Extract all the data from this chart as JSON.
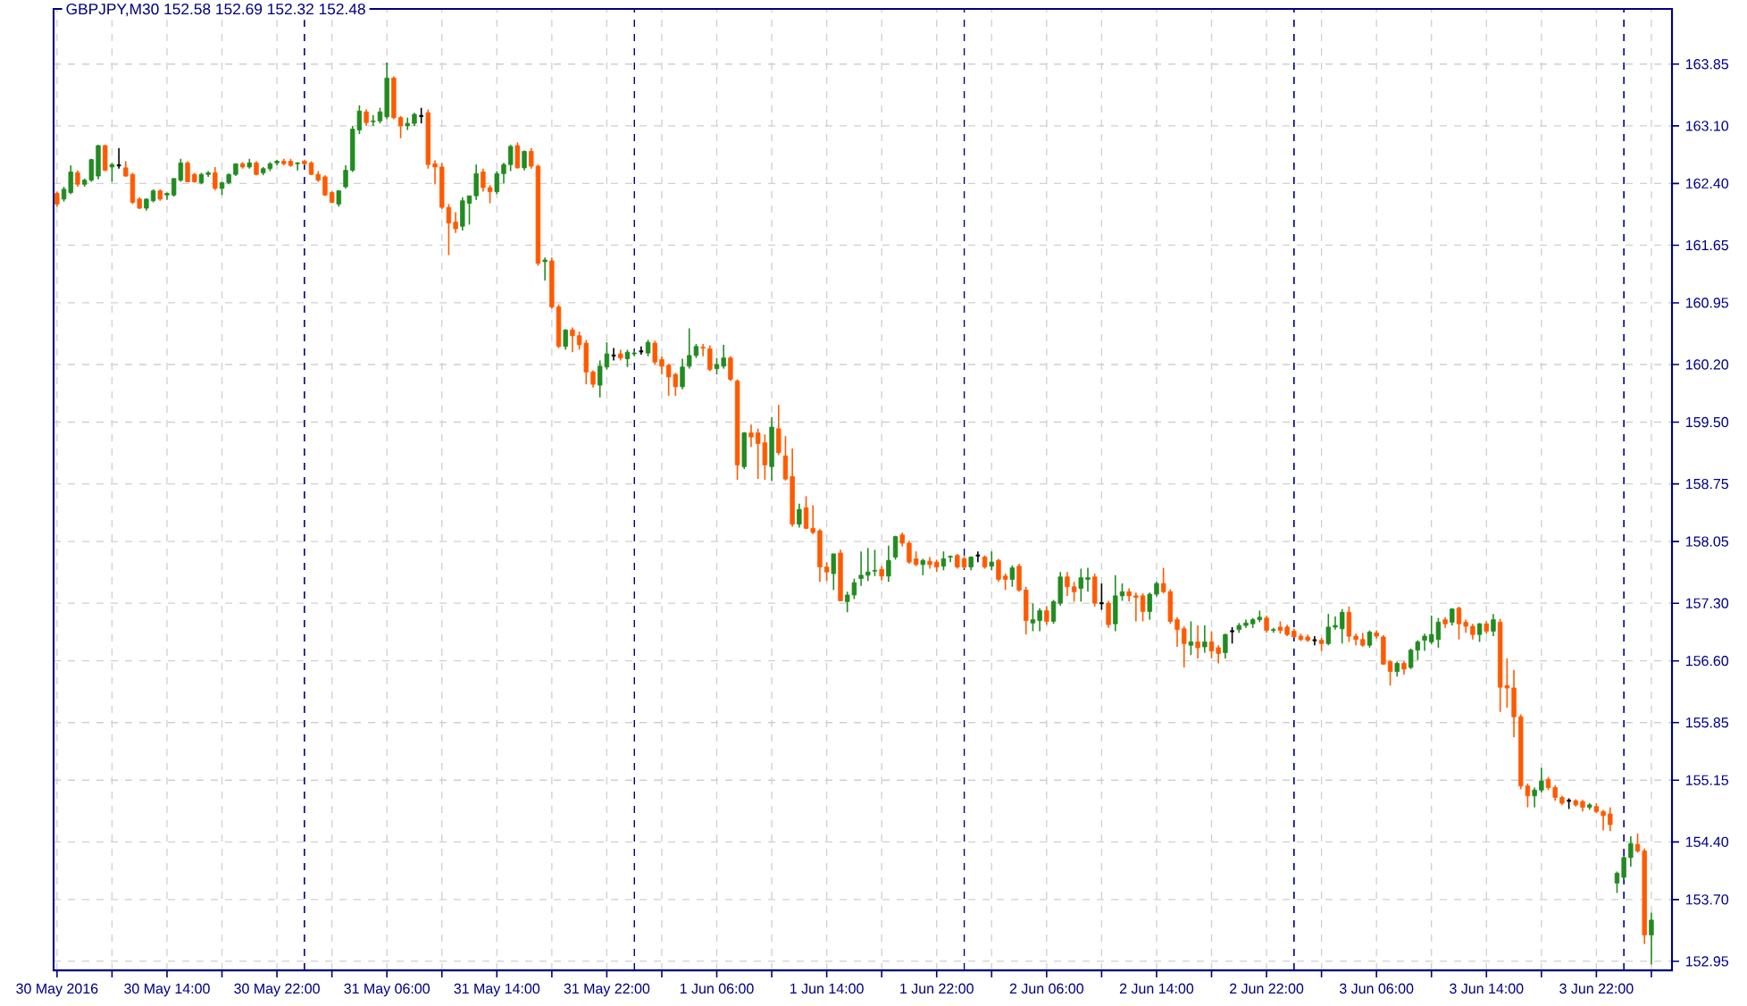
{
  "chart_data": {
    "type": "candlestick",
    "title": "GBPJPY,M30  152.58 152.69 152.32 152.48",
    "x": [
      "2016-05-30T06:00",
      "2016-05-30T06:30",
      "2016-05-30T07:00",
      "2016-05-30T07:30",
      "2016-05-30T08:00",
      "2016-05-30T08:30",
      "2016-05-30T09:00",
      "2016-05-30T09:30",
      "2016-05-30T10:00",
      "2016-05-30T10:30",
      "2016-05-30T11:00",
      "2016-05-30T11:30",
      "2016-05-30T12:00",
      "2016-05-30T12:30",
      "2016-05-30T13:00",
      "2016-05-30T13:30",
      "2016-05-30T14:00",
      "2016-05-30T14:30",
      "2016-05-30T15:00",
      "2016-05-30T15:30",
      "2016-05-30T16:00",
      "2016-05-30T16:30",
      "2016-05-30T17:00",
      "2016-05-30T17:30",
      "2016-05-30T18:00",
      "2016-05-30T18:30",
      "2016-05-30T19:00",
      "2016-05-30T19:30",
      "2016-05-30T20:00",
      "2016-05-30T20:30",
      "2016-05-30T21:00",
      "2016-05-30T21:30",
      "2016-05-30T22:00",
      "2016-05-30T22:30",
      "2016-05-30T23:00",
      "2016-05-30T23:30",
      "2016-05-31T00:00",
      "2016-05-31T00:30",
      "2016-05-31T01:00",
      "2016-05-31T01:30",
      "2016-05-31T02:00",
      "2016-05-31T02:30",
      "2016-05-31T03:00",
      "2016-05-31T03:30",
      "2016-05-31T04:00",
      "2016-05-31T04:30",
      "2016-05-31T05:00",
      "2016-05-31T05:30",
      "2016-05-31T06:00",
      "2016-05-31T06:30",
      "2016-05-31T07:00",
      "2016-05-31T07:30",
      "2016-05-31T08:00",
      "2016-05-31T08:30",
      "2016-05-31T09:00",
      "2016-05-31T09:30",
      "2016-05-31T10:00",
      "2016-05-31T10:30",
      "2016-05-31T11:00",
      "2016-05-31T11:30",
      "2016-05-31T12:00",
      "2016-05-31T12:30",
      "2016-05-31T13:00",
      "2016-05-31T13:30",
      "2016-05-31T14:00",
      "2016-05-31T14:30",
      "2016-05-31T15:00",
      "2016-05-31T15:30",
      "2016-05-31T16:00",
      "2016-05-31T16:30",
      "2016-05-31T17:00",
      "2016-05-31T17:30",
      "2016-05-31T18:00",
      "2016-05-31T18:30",
      "2016-05-31T19:00",
      "2016-05-31T19:30",
      "2016-05-31T20:00",
      "2016-05-31T20:30",
      "2016-05-31T21:00",
      "2016-05-31T21:30",
      "2016-05-31T22:00",
      "2016-05-31T22:30",
      "2016-05-31T23:00",
      "2016-05-31T23:30",
      "2016-06-01T00:00",
      "2016-06-01T00:30",
      "2016-06-01T01:00",
      "2016-06-01T01:30",
      "2016-06-01T02:00",
      "2016-06-01T02:30",
      "2016-06-01T03:00",
      "2016-06-01T03:30",
      "2016-06-01T04:00",
      "2016-06-01T04:30",
      "2016-06-01T05:00",
      "2016-06-01T05:30",
      "2016-06-01T06:00",
      "2016-06-01T06:30",
      "2016-06-01T07:00",
      "2016-06-01T07:30",
      "2016-06-01T08:00",
      "2016-06-01T08:30",
      "2016-06-01T09:00",
      "2016-06-01T09:30",
      "2016-06-01T10:00",
      "2016-06-01T10:30",
      "2016-06-01T11:00",
      "2016-06-01T11:30",
      "2016-06-01T12:00",
      "2016-06-01T12:30",
      "2016-06-01T13:00",
      "2016-06-01T13:30",
      "2016-06-01T14:00",
      "2016-06-01T14:30",
      "2016-06-01T15:00",
      "2016-06-01T15:30",
      "2016-06-01T16:00",
      "2016-06-01T16:30",
      "2016-06-01T17:00",
      "2016-06-01T17:30",
      "2016-06-01T18:00",
      "2016-06-01T18:30",
      "2016-06-01T19:00",
      "2016-06-01T19:30",
      "2016-06-01T20:00",
      "2016-06-01T20:30",
      "2016-06-01T21:00",
      "2016-06-01T21:30",
      "2016-06-01T22:00",
      "2016-06-01T22:30",
      "2016-06-01T23:00",
      "2016-06-01T23:30",
      "2016-06-02T00:00",
      "2016-06-02T00:30",
      "2016-06-02T01:00",
      "2016-06-02T01:30",
      "2016-06-02T02:00",
      "2016-06-02T02:30",
      "2016-06-02T03:00",
      "2016-06-02T03:30",
      "2016-06-02T04:00",
      "2016-06-02T04:30",
      "2016-06-02T05:00",
      "2016-06-02T05:30",
      "2016-06-02T06:00",
      "2016-06-02T06:30",
      "2016-06-02T07:00",
      "2016-06-02T07:30",
      "2016-06-02T08:00",
      "2016-06-02T08:30",
      "2016-06-02T09:00",
      "2016-06-02T09:30",
      "2016-06-02T10:00",
      "2016-06-02T10:30",
      "2016-06-02T11:00",
      "2016-06-02T11:30",
      "2016-06-02T12:00",
      "2016-06-02T12:30",
      "2016-06-02T13:00",
      "2016-06-02T13:30",
      "2016-06-02T14:00",
      "2016-06-02T14:30",
      "2016-06-02T15:00",
      "2016-06-02T15:30",
      "2016-06-02T16:00",
      "2016-06-02T16:30",
      "2016-06-02T17:00",
      "2016-06-02T17:30",
      "2016-06-02T18:00",
      "2016-06-02T18:30",
      "2016-06-02T19:00",
      "2016-06-02T19:30",
      "2016-06-02T20:00",
      "2016-06-02T20:30",
      "2016-06-02T21:00",
      "2016-06-02T21:30",
      "2016-06-02T22:00",
      "2016-06-02T22:30",
      "2016-06-02T23:00",
      "2016-06-02T23:30",
      "2016-06-03T00:00",
      "2016-06-03T00:30",
      "2016-06-03T01:00",
      "2016-06-03T01:30",
      "2016-06-03T02:00",
      "2016-06-03T02:30",
      "2016-06-03T03:00",
      "2016-06-03T03:30",
      "2016-06-03T04:00",
      "2016-06-03T04:30",
      "2016-06-03T05:00",
      "2016-06-03T05:30",
      "2016-06-03T06:00",
      "2016-06-03T06:30",
      "2016-06-03T07:00",
      "2016-06-03T07:30",
      "2016-06-03T08:00",
      "2016-06-03T08:30",
      "2016-06-03T09:00",
      "2016-06-03T09:30",
      "2016-06-03T10:00",
      "2016-06-03T10:30",
      "2016-06-03T11:00",
      "2016-06-03T11:30",
      "2016-06-03T12:00",
      "2016-06-03T12:30",
      "2016-06-03T13:00",
      "2016-06-03T13:30",
      "2016-06-03T14:00",
      "2016-06-03T14:30",
      "2016-06-03T15:00",
      "2016-06-03T15:30",
      "2016-06-03T16:00",
      "2016-06-03T16:30",
      "2016-06-03T17:00",
      "2016-06-03T17:30",
      "2016-06-03T18:00",
      "2016-06-03T18:30",
      "2016-06-03T19:00",
      "2016-06-03T19:30",
      "2016-06-03T20:00",
      "2016-06-03T20:30",
      "2016-06-03T21:00",
      "2016-06-03T21:30",
      "2016-06-03T22:00",
      "2016-06-03T22:30",
      "2016-06-03T23:00",
      "2016-06-03T23:30",
      "2016-06-04T00:00",
      "2016-06-04T00:30",
      "2016-06-04T01:00",
      "2016-06-04T01:30",
      "2016-06-04T02:00"
    ],
    "ohlc": [
      [
        162.28,
        162.3,
        162.12,
        162.15
      ],
      [
        162.21,
        162.36,
        162.18,
        162.33
      ],
      [
        162.29,
        162.62,
        162.27,
        162.54
      ],
      [
        162.53,
        162.56,
        162.36,
        162.39
      ],
      [
        162.39,
        162.46,
        162.36,
        162.44
      ],
      [
        162.44,
        162.7,
        162.42,
        162.69
      ],
      [
        162.49,
        162.87,
        162.45,
        162.86
      ],
      [
        162.86,
        162.87,
        162.55,
        162.56
      ],
      [
        162.6,
        162.65,
        162.42,
        162.63
      ],
      [
        162.62,
        162.83,
        162.58,
        162.62
      ],
      [
        162.59,
        162.67,
        162.48,
        162.49
      ],
      [
        162.51,
        162.53,
        162.15,
        162.17
      ],
      [
        162.21,
        162.23,
        162.09,
        162.1
      ],
      [
        162.1,
        162.22,
        162.07,
        162.21
      ],
      [
        162.19,
        162.33,
        162.17,
        162.31
      ],
      [
        162.31,
        162.33,
        162.19,
        162.21
      ],
      [
        162.26,
        162.29,
        162.2,
        162.28
      ],
      [
        162.26,
        162.46,
        162.24,
        162.46
      ],
      [
        162.44,
        162.7,
        162.42,
        162.65
      ],
      [
        162.65,
        162.67,
        162.42,
        162.42
      ],
      [
        162.51,
        162.53,
        162.41,
        162.42
      ],
      [
        162.41,
        162.53,
        162.39,
        162.51
      ],
      [
        162.51,
        162.55,
        162.48,
        162.53
      ],
      [
        162.53,
        162.6,
        162.32,
        162.34
      ],
      [
        162.34,
        162.42,
        162.26,
        162.41
      ],
      [
        162.41,
        162.52,
        162.39,
        162.51
      ],
      [
        162.51,
        162.64,
        162.49,
        162.64
      ],
      [
        162.64,
        162.66,
        162.58,
        162.6
      ],
      [
        162.6,
        162.7,
        162.58,
        162.65
      ],
      [
        162.65,
        162.67,
        162.5,
        162.51
      ],
      [
        162.53,
        162.6,
        162.5,
        162.58
      ],
      [
        162.58,
        162.66,
        162.55,
        162.64
      ],
      [
        162.65,
        162.69,
        162.62,
        162.67
      ],
      [
        162.67,
        162.7,
        162.62,
        162.64
      ],
      [
        162.67,
        162.7,
        162.6,
        162.62
      ],
      [
        162.64,
        162.66,
        162.56,
        162.65
      ],
      [
        162.67,
        162.69,
        162.62,
        162.64
      ],
      [
        162.65,
        162.67,
        162.5,
        162.51
      ],
      [
        162.51,
        162.55,
        162.42,
        162.44
      ],
      [
        162.48,
        162.5,
        162.25,
        162.26
      ],
      [
        162.29,
        162.31,
        162.16,
        162.17
      ],
      [
        162.15,
        162.32,
        162.12,
        162.31
      ],
      [
        162.36,
        162.62,
        162.34,
        162.56
      ],
      [
        162.56,
        163.1,
        162.54,
        163.06
      ],
      [
        163.05,
        163.35,
        163.0,
        163.28
      ],
      [
        163.27,
        163.3,
        163.1,
        163.14
      ],
      [
        163.15,
        163.23,
        163.1,
        163.16
      ],
      [
        163.16,
        163.32,
        163.13,
        163.27
      ],
      [
        163.21,
        163.87,
        163.18,
        163.68
      ],
      [
        163.68,
        163.7,
        163.18,
        163.2
      ],
      [
        163.2,
        163.22,
        162.95,
        163.1
      ],
      [
        163.1,
        163.2,
        163.05,
        163.13
      ],
      [
        163.13,
        163.26,
        163.1,
        163.24
      ],
      [
        163.22,
        163.32,
        163.13,
        163.22
      ],
      [
        163.26,
        163.3,
        162.58,
        162.63
      ],
      [
        162.64,
        162.68,
        162.39,
        162.6
      ],
      [
        162.6,
        162.65,
        162.09,
        162.11
      ],
      [
        162.11,
        162.15,
        161.53,
        161.92
      ],
      [
        161.93,
        162.05,
        161.8,
        161.85
      ],
      [
        161.88,
        162.23,
        161.83,
        162.19
      ],
      [
        162.16,
        162.25,
        161.9,
        162.25
      ],
      [
        162.25,
        162.63,
        162.2,
        162.52
      ],
      [
        162.54,
        162.58,
        162.3,
        162.35
      ],
      [
        162.35,
        162.38,
        162.16,
        162.3
      ],
      [
        162.3,
        162.55,
        162.27,
        162.52
      ],
      [
        162.52,
        162.65,
        162.4,
        162.63
      ],
      [
        162.63,
        162.87,
        162.55,
        162.85
      ],
      [
        162.86,
        162.9,
        162.58,
        162.59
      ],
      [
        162.59,
        162.8,
        162.56,
        162.79
      ],
      [
        162.79,
        162.83,
        162.58,
        162.61
      ],
      [
        162.61,
        162.63,
        161.4,
        161.43
      ],
      [
        161.45,
        161.5,
        161.22,
        161.47
      ],
      [
        161.46,
        161.5,
        160.88,
        160.9
      ],
      [
        160.9,
        160.93,
        160.4,
        160.42
      ],
      [
        160.42,
        160.63,
        160.38,
        160.62
      ],
      [
        160.62,
        160.65,
        160.35,
        160.55
      ],
      [
        160.55,
        160.6,
        160.38,
        160.44
      ],
      [
        160.46,
        160.5,
        159.96,
        160.11
      ],
      [
        160.11,
        160.13,
        159.92,
        159.96
      ],
      [
        159.95,
        160.25,
        159.8,
        160.18
      ],
      [
        160.17,
        160.47,
        160.14,
        160.33
      ],
      [
        160.31,
        160.4,
        160.25,
        160.31
      ],
      [
        160.33,
        160.38,
        160.25,
        160.28
      ],
      [
        160.27,
        160.38,
        160.17,
        160.35
      ],
      [
        160.33,
        160.37,
        160.3,
        160.34
      ],
      [
        160.36,
        160.42,
        160.32,
        160.36
      ],
      [
        160.34,
        160.5,
        160.3,
        160.47
      ],
      [
        160.46,
        160.49,
        160.2,
        160.23
      ],
      [
        160.26,
        160.3,
        160.08,
        160.18
      ],
      [
        160.19,
        160.21,
        159.82,
        160.05
      ],
      [
        160.08,
        160.1,
        159.82,
        159.93
      ],
      [
        159.93,
        160.27,
        159.9,
        160.17
      ],
      [
        160.18,
        160.64,
        160.15,
        160.31
      ],
      [
        160.31,
        160.45,
        160.28,
        160.42
      ],
      [
        160.41,
        160.45,
        160.3,
        160.4
      ],
      [
        160.39,
        160.43,
        160.12,
        160.14
      ],
      [
        160.15,
        160.28,
        160.08,
        160.2
      ],
      [
        160.18,
        160.44,
        160.15,
        160.28
      ],
      [
        160.28,
        160.3,
        160.0,
        160.02
      ],
      [
        160.0,
        160.02,
        158.8,
        158.98
      ],
      [
        158.96,
        159.38,
        158.93,
        159.37
      ],
      [
        159.37,
        159.47,
        159.2,
        159.32
      ],
      [
        159.37,
        159.42,
        158.81,
        159.24
      ],
      [
        159.25,
        159.35,
        158.8,
        158.98
      ],
      [
        158.96,
        159.56,
        158.79,
        159.44
      ],
      [
        159.42,
        159.71,
        159.1,
        159.13
      ],
      [
        159.09,
        159.33,
        158.79,
        158.81
      ],
      [
        158.84,
        159.18,
        158.23,
        158.26
      ],
      [
        158.26,
        158.51,
        158.22,
        158.44
      ],
      [
        158.46,
        158.6,
        158.2,
        158.21
      ],
      [
        158.21,
        158.49,
        158.14,
        158.16
      ],
      [
        158.18,
        158.2,
        157.56,
        157.74
      ],
      [
        157.74,
        157.8,
        157.57,
        157.68
      ],
      [
        157.66,
        157.9,
        157.46,
        157.9
      ],
      [
        157.91,
        157.95,
        157.33,
        157.33
      ],
      [
        157.32,
        157.44,
        157.19,
        157.4
      ],
      [
        157.4,
        157.6,
        157.35,
        157.55
      ],
      [
        157.6,
        157.93,
        157.51,
        157.64
      ],
      [
        157.64,
        157.97,
        157.57,
        157.68
      ],
      [
        157.69,
        157.95,
        157.63,
        157.7
      ],
      [
        157.71,
        157.75,
        157.58,
        157.63
      ],
      [
        157.63,
        158.0,
        157.56,
        157.82
      ],
      [
        157.86,
        158.12,
        157.83,
        158.11
      ],
      [
        158.13,
        158.16,
        157.99,
        158.03
      ],
      [
        158.03,
        158.06,
        157.78,
        157.8
      ],
      [
        157.84,
        157.93,
        157.75,
        157.77
      ],
      [
        157.77,
        157.84,
        157.64,
        157.82
      ],
      [
        157.81,
        157.86,
        157.72,
        157.77
      ],
      [
        157.8,
        157.83,
        157.68,
        157.74
      ],
      [
        157.75,
        157.93,
        157.7,
        157.84
      ],
      [
        157.86,
        157.88,
        157.8,
        157.87
      ],
      [
        157.88,
        157.9,
        157.72,
        157.74
      ],
      [
        157.84,
        157.87,
        157.72,
        157.74
      ],
      [
        157.74,
        157.87,
        157.7,
        157.86
      ],
      [
        157.88,
        157.93,
        157.8,
        157.88
      ],
      [
        157.86,
        157.88,
        157.72,
        157.74
      ],
      [
        157.75,
        157.93,
        157.7,
        157.8
      ],
      [
        157.82,
        157.84,
        157.56,
        157.59
      ],
      [
        157.63,
        157.66,
        157.46,
        157.59
      ],
      [
        157.59,
        157.76,
        157.5,
        157.73
      ],
      [
        157.75,
        157.78,
        157.44,
        157.46
      ],
      [
        157.46,
        157.5,
        156.92,
        157.09
      ],
      [
        157.06,
        157.3,
        156.96,
        157.1
      ],
      [
        157.09,
        157.24,
        156.96,
        157.21
      ],
      [
        157.21,
        157.26,
        157.04,
        157.08
      ],
      [
        157.08,
        157.34,
        157.05,
        157.32
      ],
      [
        157.3,
        157.68,
        157.27,
        157.62
      ],
      [
        157.62,
        157.68,
        157.39,
        157.5
      ],
      [
        157.5,
        157.56,
        157.32,
        157.44
      ],
      [
        157.48,
        157.72,
        157.32,
        157.61
      ],
      [
        157.59,
        157.73,
        157.44,
        157.61
      ],
      [
        157.62,
        157.66,
        157.26,
        157.3
      ],
      [
        157.3,
        157.54,
        157.22,
        157.3
      ],
      [
        157.3,
        157.33,
        157.0,
        157.04
      ],
      [
        157.05,
        157.64,
        156.96,
        157.39
      ],
      [
        157.39,
        157.54,
        157.33,
        157.44
      ],
      [
        157.44,
        157.48,
        157.32,
        157.39
      ],
      [
        157.39,
        157.43,
        157.08,
        157.37
      ],
      [
        157.39,
        157.42,
        157.08,
        157.2
      ],
      [
        157.2,
        157.43,
        157.1,
        157.41
      ],
      [
        157.41,
        157.56,
        157.38,
        157.54
      ],
      [
        157.54,
        157.73,
        157.42,
        157.44
      ],
      [
        157.44,
        157.47,
        157.05,
        157.08
      ],
      [
        157.1,
        157.13,
        156.77,
        156.98
      ],
      [
        156.99,
        157.02,
        156.52,
        156.81
      ],
      [
        156.79,
        157.08,
        156.67,
        156.83
      ],
      [
        156.83,
        157.03,
        156.63,
        156.76
      ],
      [
        156.77,
        157.03,
        156.7,
        156.83
      ],
      [
        156.83,
        156.96,
        156.63,
        156.72
      ],
      [
        156.76,
        156.79,
        156.57,
        156.69
      ],
      [
        156.7,
        156.93,
        156.63,
        156.92
      ],
      [
        156.96,
        157.01,
        156.81,
        156.96
      ],
      [
        156.98,
        157.06,
        156.94,
        157.03
      ],
      [
        157.03,
        157.1,
        157.0,
        157.06
      ],
      [
        157.05,
        157.12,
        157.0,
        157.1
      ],
      [
        157.1,
        157.21,
        157.07,
        157.13
      ],
      [
        157.12,
        157.15,
        156.94,
        156.97
      ],
      [
        156.97,
        157.0,
        156.94,
        156.98
      ],
      [
        157.01,
        157.08,
        156.93,
        156.97
      ],
      [
        157.01,
        157.04,
        156.9,
        156.92
      ],
      [
        156.96,
        156.99,
        156.88,
        156.89
      ],
      [
        156.9,
        156.93,
        156.84,
        156.86
      ],
      [
        156.89,
        156.92,
        156.83,
        156.85
      ],
      [
        156.85,
        156.9,
        156.79,
        156.85
      ],
      [
        156.85,
        156.88,
        156.72,
        156.81
      ],
      [
        156.81,
        157.17,
        156.79,
        157.01
      ],
      [
        157.01,
        157.14,
        156.98,
        157.03
      ],
      [
        156.99,
        157.23,
        156.81,
        157.19
      ],
      [
        157.19,
        157.26,
        156.83,
        156.9
      ],
      [
        156.9,
        156.93,
        156.79,
        156.86
      ],
      [
        156.86,
        156.94,
        156.77,
        156.79
      ],
      [
        156.79,
        156.97,
        156.76,
        156.95
      ],
      [
        156.94,
        156.97,
        156.87,
        156.9
      ],
      [
        156.89,
        156.91,
        156.55,
        156.56
      ],
      [
        156.59,
        156.61,
        156.3,
        156.47
      ],
      [
        156.47,
        156.59,
        156.41,
        156.57
      ],
      [
        156.57,
        156.6,
        156.43,
        156.5
      ],
      [
        156.52,
        156.75,
        156.5,
        156.73
      ],
      [
        156.73,
        156.85,
        156.61,
        156.83
      ],
      [
        156.85,
        156.93,
        156.72,
        156.9
      ],
      [
        156.83,
        157.15,
        156.8,
        156.92
      ],
      [
        156.86,
        157.12,
        156.76,
        157.07
      ],
      [
        157.1,
        157.13,
        157.0,
        157.05
      ],
      [
        157.07,
        157.24,
        157.03,
        157.23
      ],
      [
        157.24,
        157.26,
        156.86,
        157.05
      ],
      [
        157.07,
        157.1,
        156.94,
        157.02
      ],
      [
        157.02,
        157.05,
        156.86,
        156.92
      ],
      [
        156.92,
        157.06,
        156.83,
        157.05
      ],
      [
        157.05,
        157.08,
        156.93,
        156.96
      ],
      [
        156.96,
        157.17,
        156.9,
        157.1
      ],
      [
        157.07,
        157.11,
        155.98,
        156.28
      ],
      [
        156.3,
        156.63,
        156.03,
        156.27
      ],
      [
        156.27,
        156.49,
        155.67,
        155.92
      ],
      [
        155.92,
        155.95,
        155.04,
        155.08
      ],
      [
        155.08,
        155.11,
        154.82,
        154.96
      ],
      [
        154.96,
        155.06,
        154.82,
        155.03
      ],
      [
        155.03,
        155.3,
        155.0,
        155.14
      ],
      [
        155.16,
        155.19,
        155.03,
        155.06
      ],
      [
        155.06,
        155.09,
        154.9,
        154.94
      ],
      [
        154.94,
        154.96,
        154.85,
        154.87
      ],
      [
        154.9,
        154.93,
        154.8,
        154.9
      ],
      [
        154.9,
        154.92,
        154.83,
        154.85
      ],
      [
        154.89,
        154.91,
        154.77,
        154.82
      ],
      [
        154.82,
        154.87,
        154.79,
        154.85
      ],
      [
        154.83,
        154.87,
        154.75,
        154.77
      ],
      [
        154.77,
        154.79,
        154.54,
        154.72
      ],
      [
        154.74,
        154.82,
        154.53,
        154.61
      ],
      [
        153.9,
        154.04,
        153.78,
        154.02
      ],
      [
        153.97,
        154.23,
        153.94,
        154.21
      ],
      [
        154.21,
        154.47,
        154.1,
        154.38
      ],
      [
        154.37,
        154.5,
        154.27,
        154.29
      ],
      [
        154.29,
        154.32,
        153.16,
        153.27
      ],
      [
        153.27,
        153.54,
        152.91,
        153.45
      ]
    ],
    "colors": [
      "#ff5a00",
      "#228b22",
      "#228b22",
      "#ff5a00",
      "#228b22",
      "#228b22",
      "#228b22",
      "#ff5a00",
      "#228b22",
      "#000000",
      "#ff5a00",
      "#ff5a00",
      "#ff5a00",
      "#228b22",
      "#228b22",
      "#ff5a00",
      "#228b22",
      "#228b22",
      "#228b22",
      "#ff5a00",
      "#ff5a00",
      "#228b22",
      "#228b22",
      "#ff5a00",
      "#228b22",
      "#228b22",
      "#228b22",
      "#ff5a00",
      "#228b22",
      "#ff5a00",
      "#228b22",
      "#228b22",
      "#228b22",
      "#ff5a00",
      "#ff5a00",
      "#228b22",
      "#ff5a00",
      "#ff5a00",
      "#ff5a00",
      "#ff5a00",
      "#ff5a00",
      "#228b22",
      "#228b22",
      "#228b22",
      "#228b22",
      "#ff5a00",
      "#228b22",
      "#228b22",
      "#228b22",
      "#ff5a00",
      "#ff5a00",
      "#228b22",
      "#228b22",
      "#000000",
      "#ff5a00",
      "#ff5a00",
      "#ff5a00",
      "#ff5a00",
      "#ff5a00",
      "#228b22",
      "#228b22",
      "#228b22",
      "#ff5a00",
      "#ff5a00",
      "#228b22",
      "#228b22",
      "#228b22",
      "#ff5a00",
      "#228b22",
      "#ff5a00",
      "#ff5a00",
      "#228b22",
      "#ff5a00",
      "#ff5a00",
      "#228b22",
      "#ff5a00",
      "#ff5a00",
      "#ff5a00",
      "#ff5a00",
      "#228b22",
      "#228b22",
      "#000000",
      "#ff5a00",
      "#228b22",
      "#228b22",
      "#000000",
      "#228b22",
      "#ff5a00",
      "#ff5a00",
      "#ff5a00",
      "#ff5a00",
      "#228b22",
      "#228b22",
      "#228b22",
      "#ff5a00",
      "#ff5a00",
      "#228b22",
      "#228b22",
      "#ff5a00",
      "#ff5a00",
      "#228b22",
      "#ff5a00",
      "#ff5a00",
      "#ff5a00",
      "#228b22",
      "#ff5a00",
      "#ff5a00",
      "#ff5a00",
      "#228b22",
      "#ff5a00",
      "#ff5a00",
      "#ff5a00",
      "#ff5a00",
      "#228b22",
      "#ff5a00",
      "#228b22",
      "#228b22",
      "#228b22",
      "#228b22",
      "#228b22",
      "#ff5a00",
      "#228b22",
      "#228b22",
      "#ff5a00",
      "#ff5a00",
      "#ff5a00",
      "#228b22",
      "#ff5a00",
      "#ff5a00",
      "#228b22",
      "#228b22",
      "#ff5a00",
      "#ff5a00",
      "#228b22",
      "#000000",
      "#ff5a00",
      "#228b22",
      "#ff5a00",
      "#ff5a00",
      "#228b22",
      "#ff5a00",
      "#ff5a00",
      "#228b22",
      "#228b22",
      "#ff5a00",
      "#228b22",
      "#228b22",
      "#ff5a00",
      "#ff5a00",
      "#228b22",
      "#228b22",
      "#ff5a00",
      "#000000",
      "#ff5a00",
      "#228b22",
      "#228b22",
      "#ff5a00",
      "#ff5a00",
      "#ff5a00",
      "#228b22",
      "#228b22",
      "#ff5a00",
      "#ff5a00",
      "#ff5a00",
      "#ff5a00",
      "#228b22",
      "#ff5a00",
      "#228b22",
      "#ff5a00",
      "#ff5a00",
      "#228b22",
      "#000000",
      "#228b22",
      "#228b22",
      "#228b22",
      "#228b22",
      "#ff5a00",
      "#228b22",
      "#ff5a00",
      "#ff5a00",
      "#ff5a00",
      "#ff5a00",
      "#ff5a00",
      "#000000",
      "#ff5a00",
      "#228b22",
      "#228b22",
      "#228b22",
      "#ff5a00",
      "#ff5a00",
      "#ff5a00",
      "#228b22",
      "#ff5a00",
      "#ff5a00",
      "#ff5a00",
      "#228b22",
      "#ff5a00",
      "#228b22",
      "#228b22",
      "#228b22",
      "#228b22",
      "#228b22",
      "#ff5a00",
      "#228b22",
      "#ff5a00",
      "#ff5a00",
      "#ff5a00",
      "#228b22",
      "#ff5a00",
      "#228b22",
      "#ff5a00",
      "#ff5a00",
      "#ff5a00",
      "#ff5a00",
      "#ff5a00",
      "#228b22",
      "#228b22",
      "#ff5a00",
      "#ff5a00",
      "#ff5a00",
      "#000000",
      "#ff5a00",
      "#ff5a00",
      "#228b22",
      "#ff5a00",
      "#ff5a00",
      "#ff5a00",
      "#228b22",
      "#228b22",
      "#228b22",
      "#ff5a00",
      "#ff5a00",
      "#228b22"
    ],
    "xlim": [
      "2016-05-30T05:45",
      "2016-06-04T03:30"
    ],
    "ylim": [
      152.84,
      164.52
    ],
    "xticks": [
      {
        "value": "2016-05-30T06:00",
        "label": "30 May 2016"
      },
      {
        "value": "2016-05-30T10:00",
        "label": null
      },
      {
        "value": "2016-05-30T14:00",
        "label": "30 May 14:00"
      },
      {
        "value": "2016-05-30T18:00",
        "label": null
      },
      {
        "value": "2016-05-30T22:00",
        "label": "30 May 22:00"
      },
      {
        "value": "2016-05-31T02:00",
        "label": null
      },
      {
        "value": "2016-05-31T06:00",
        "label": "31 May 06:00"
      },
      {
        "value": "2016-05-31T10:00",
        "label": null
      },
      {
        "value": "2016-05-31T14:00",
        "label": "31 May 14:00"
      },
      {
        "value": "2016-05-31T18:00",
        "label": null
      },
      {
        "value": "2016-05-31T22:00",
        "label": "31 May 22:00"
      },
      {
        "value": "2016-06-01T02:00",
        "label": null
      },
      {
        "value": "2016-06-01T06:00",
        "label": "1 Jun 06:00"
      },
      {
        "value": "2016-06-01T10:00",
        "label": null
      },
      {
        "value": "2016-06-01T14:00",
        "label": "1 Jun 14:00"
      },
      {
        "value": "2016-06-01T18:00",
        "label": null
      },
      {
        "value": "2016-06-01T22:00",
        "label": "1 Jun 22:00"
      },
      {
        "value": "2016-06-02T02:00",
        "label": null
      },
      {
        "value": "2016-06-02T06:00",
        "label": "2 Jun 06:00"
      },
      {
        "value": "2016-06-02T10:00",
        "label": null
      },
      {
        "value": "2016-06-02T14:00",
        "label": "2 Jun 14:00"
      },
      {
        "value": "2016-06-02T18:00",
        "label": null
      },
      {
        "value": "2016-06-02T22:00",
        "label": "2 Jun 22:00"
      },
      {
        "value": "2016-06-03T02:00",
        "label": null
      },
      {
        "value": "2016-06-03T06:00",
        "label": "3 Jun 06:00"
      },
      {
        "value": "2016-06-03T10:00",
        "label": null
      },
      {
        "value": "2016-06-03T14:00",
        "label": "3 Jun 14:00"
      },
      {
        "value": "2016-06-03T18:00",
        "label": null
      },
      {
        "value": "2016-06-03T22:00",
        "label": "3 Jun 22:00"
      },
      {
        "value": "2016-06-04T02:00",
        "label": null
      }
    ],
    "yticks": [
      152.95,
      {
        "value": 153.7,
        "label": "153.70"
      },
      {
        "value": 154.4,
        "label": "154.40"
      },
      155.15,
      155.85,
      {
        "value": 156.6,
        "label": "156.60"
      },
      {
        "value": 157.3,
        "label": "157.30"
      },
      158.05,
      158.75,
      {
        "value": 159.5,
        "label": "159.50"
      },
      {
        "value": 160.2,
        "label": "160.20"
      },
      160.95,
      161.65,
      {
        "value": 162.4,
        "label": "162.40"
      },
      {
        "value": 163.1,
        "label": "163.10"
      },
      163.85
    ],
    "grid": true,
    "ref_lines": [
      {
        "axis": "x",
        "value": "2016-05-31T00:00",
        "color": "#000080",
        "line_style": "dashed"
      },
      {
        "axis": "x",
        "value": "2016-06-01T00:00",
        "color": "#000080",
        "line_style": "dashed"
      },
      {
        "axis": "x",
        "value": "2016-06-02T00:00",
        "color": "#000080",
        "line_style": "dashed"
      },
      {
        "axis": "x",
        "value": "2016-06-03T00:00",
        "color": "#000080",
        "line_style": "dashed"
      },
      {
        "axis": "x",
        "value": "2016-06-04T00:00",
        "color": "#000080",
        "line_style": "dashed"
      }
    ]
  }
}
